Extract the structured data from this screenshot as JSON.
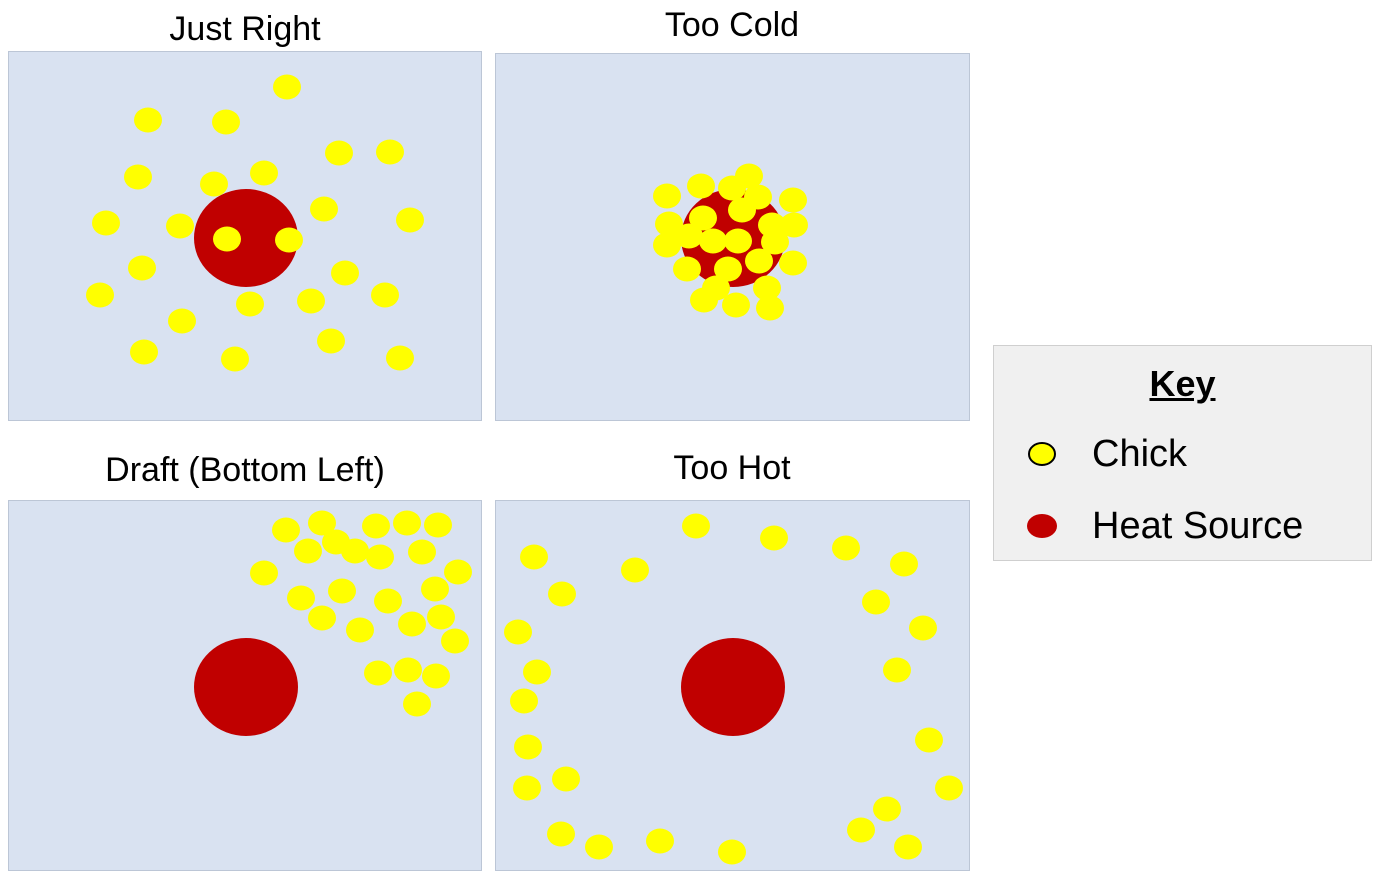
{
  "colors": {
    "background": "#d9e2f1",
    "chick": "#ffff00",
    "heat_source": "#c00000",
    "key_background": "#f0f0f0"
  },
  "panels": [
    {
      "title": "Just Right",
      "heat_source": [
        245,
        237
      ],
      "chicks": [
        [
          286,
          86
        ],
        [
          147,
          119
        ],
        [
          225,
          121
        ],
        [
          338,
          152
        ],
        [
          389,
          151
        ],
        [
          137,
          176
        ],
        [
          263,
          172
        ],
        [
          213,
          183
        ],
        [
          323,
          208
        ],
        [
          105,
          222
        ],
        [
          179,
          225
        ],
        [
          409,
          219
        ],
        [
          226,
          238
        ],
        [
          288,
          239
        ],
        [
          141,
          267
        ],
        [
          344,
          272
        ],
        [
          99,
          294
        ],
        [
          249,
          303
        ],
        [
          310,
          300
        ],
        [
          384,
          294
        ],
        [
          181,
          320
        ],
        [
          330,
          340
        ],
        [
          143,
          351
        ],
        [
          234,
          358
        ],
        [
          399,
          357
        ]
      ]
    },
    {
      "title": "Too Cold",
      "heat_source": [
        732,
        237
      ],
      "chicks": [
        [
          748,
          175
        ],
        [
          666,
          195
        ],
        [
          700,
          185
        ],
        [
          731,
          187
        ],
        [
          757,
          196
        ],
        [
          792,
          199
        ],
        [
          668,
          223
        ],
        [
          702,
          217
        ],
        [
          741,
          209
        ],
        [
          771,
          224
        ],
        [
          793,
          224
        ],
        [
          688,
          235
        ],
        [
          712,
          240
        ],
        [
          737,
          240
        ],
        [
          666,
          244
        ],
        [
          774,
          241
        ],
        [
          686,
          268
        ],
        [
          727,
          268
        ],
        [
          758,
          260
        ],
        [
          792,
          262
        ],
        [
          715,
          287
        ],
        [
          766,
          287
        ],
        [
          703,
          299
        ],
        [
          735,
          304
        ],
        [
          769,
          307
        ]
      ]
    },
    {
      "title": "Draft (Bottom Left)",
      "heat_source": [
        245,
        686
      ],
      "chicks": [
        [
          285,
          529
        ],
        [
          321,
          522
        ],
        [
          375,
          525
        ],
        [
          406,
          522
        ],
        [
          437,
          524
        ],
        [
          307,
          550
        ],
        [
          335,
          541
        ],
        [
          354,
          550
        ],
        [
          379,
          556
        ],
        [
          421,
          551
        ],
        [
          263,
          572
        ],
        [
          457,
          571
        ],
        [
          300,
          597
        ],
        [
          341,
          590
        ],
        [
          387,
          600
        ],
        [
          434,
          588
        ],
        [
          321,
          617
        ],
        [
          359,
          629
        ],
        [
          411,
          623
        ],
        [
          440,
          616
        ],
        [
          454,
          640
        ],
        [
          377,
          672
        ],
        [
          407,
          669
        ],
        [
          435,
          675
        ],
        [
          416,
          703
        ]
      ]
    },
    {
      "title": "Too Hot",
      "heat_source": [
        732,
        686
      ],
      "chicks": [
        [
          695,
          525
        ],
        [
          773,
          537
        ],
        [
          845,
          547
        ],
        [
          533,
          556
        ],
        [
          903,
          563
        ],
        [
          634,
          569
        ],
        [
          561,
          593
        ],
        [
          875,
          601
        ],
        [
          922,
          627
        ],
        [
          517,
          631
        ],
        [
          536,
          671
        ],
        [
          896,
          669
        ],
        [
          523,
          700
        ],
        [
          928,
          739
        ],
        [
          527,
          746
        ],
        [
          565,
          778
        ],
        [
          526,
          787
        ],
        [
          948,
          787
        ],
        [
          886,
          808
        ],
        [
          560,
          833
        ],
        [
          860,
          829
        ],
        [
          598,
          846
        ],
        [
          659,
          840
        ],
        [
          907,
          846
        ],
        [
          731,
          851
        ]
      ]
    }
  ],
  "key": {
    "title": "Key",
    "items": [
      {
        "label": "Chick",
        "icon": "chick-icon"
      },
      {
        "label": "Heat Source",
        "icon": "heat-source-icon"
      }
    ]
  }
}
